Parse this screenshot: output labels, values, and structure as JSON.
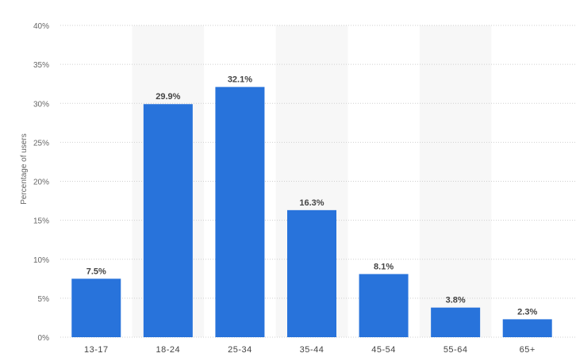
{
  "colors": {
    "bar": "#2873DB",
    "band": "#F7F7F7",
    "grid": "#CFCFCF",
    "text": "#444444"
  },
  "chart_data": {
    "type": "bar",
    "title": "",
    "xlabel": "",
    "ylabel": "Percentage of users",
    "categories": [
      "13-17",
      "18-24",
      "25-34",
      "35-44",
      "45-54",
      "55-64",
      "65+"
    ],
    "values": [
      7.5,
      29.9,
      32.1,
      16.3,
      8.1,
      3.8,
      2.3
    ],
    "value_labels": [
      "7.5%",
      "29.9%",
      "32.1%",
      "16.3%",
      "8.1%",
      "3.8%",
      "2.3%"
    ],
    "ylim": [
      0,
      40
    ],
    "yticks": [
      0,
      5,
      10,
      15,
      20,
      25,
      30,
      35,
      40
    ],
    "ytick_labels": [
      "0%",
      "5%",
      "10%",
      "15%",
      "20%",
      "25%",
      "30%",
      "35%",
      "40%"
    ],
    "grid": true,
    "legend": "none"
  }
}
